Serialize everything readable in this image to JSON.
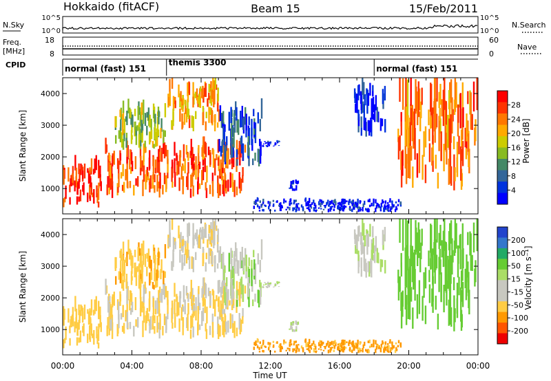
{
  "header": {
    "station": "Hokkaido (fitACF)",
    "beam": "Beam 15",
    "date": "15/Feb/2011"
  },
  "noise_panel": {
    "left_label": "N.Sky",
    "right_label": "N.Search",
    "left_ticks": [
      "10^5",
      "10^0"
    ],
    "right_ticks": [
      "10^5",
      "10^0"
    ]
  },
  "freq_panel": {
    "left_label_1": "Freq.",
    "left_label_2": "[MHz]",
    "right_label": "Nave",
    "left_ticks": [
      "18",
      "8"
    ],
    "right_ticks": [
      "60",
      "0"
    ]
  },
  "cpid": {
    "label": "CPID",
    "segments": [
      {
        "name": "normal (fast) 151",
        "start_hour": 0
      },
      {
        "name": "themis 3300",
        "start_hour": 6
      },
      {
        "name": "normal (fast) 151",
        "start_hour": 18
      }
    ]
  },
  "power_colorbar": {
    "title": "Power [dB]",
    "levels": [
      "28",
      "24",
      "20",
      "16",
      "12",
      "8",
      "4"
    ],
    "colors": [
      "#ff0000",
      "#ff3300",
      "#ff7700",
      "#ffaa00",
      "#cccc00",
      "#88bb22",
      "#448866",
      "#336699",
      "#0033dd",
      "#0000ff"
    ]
  },
  "velocity_colorbar": {
    "title": "Velocity [m s⁻¹]",
    "levels": [
      "200",
      "100",
      "50",
      "15",
      "-15",
      "-50",
      "-100",
      "-200"
    ],
    "colors": [
      "#2244cc",
      "#3377cc",
      "#22aa66",
      "#66cc33",
      "#aadd66",
      "#c8c8c0",
      "#c8c8c0",
      "#ffcc44",
      "#ff9900",
      "#ff5500",
      "#ee0000"
    ]
  },
  "chart_data": {
    "type": "heatmap",
    "xlabel": "Time UT",
    "ylabel": "Slant Range [km]",
    "x_ticks": [
      "00:00",
      "04:00",
      "08:00",
      "12:00",
      "16:00",
      "20:00",
      "00:00"
    ],
    "y_ticks": [
      "1000",
      "2000",
      "3000",
      "4000"
    ],
    "xlim_hours": [
      0,
      24
    ],
    "ylim_km": [
      200,
      4500
    ],
    "echo_regions": [
      {
        "t0": 0.0,
        "t1": 2.2,
        "r0": 400,
        "r1": 1800,
        "power_db": 30,
        "velocity": -30
      },
      {
        "t0": 2.4,
        "t1": 10.5,
        "r0": 700,
        "r1": 2400,
        "power_db": 28,
        "velocity": -20
      },
      {
        "t0": 3.0,
        "t1": 6.0,
        "r0": 2200,
        "r1": 3600,
        "power_db": 18,
        "velocity": -40
      },
      {
        "t0": 6.0,
        "t1": 9.0,
        "r0": 2800,
        "r1": 4400,
        "power_db": 24,
        "velocity": -10
      },
      {
        "t0": 9.0,
        "t1": 11.5,
        "r0": 1700,
        "r1": 3600,
        "power_db": 10,
        "velocity": 5
      },
      {
        "t0": 11.5,
        "t1": 12.5,
        "r0": 2300,
        "r1": 2500,
        "power_db": 6,
        "velocity": 0
      },
      {
        "t0": 13.0,
        "t1": 13.6,
        "r0": 900,
        "r1": 1300,
        "power_db": 6,
        "velocity": 0
      },
      {
        "t0": 11.0,
        "t1": 19.5,
        "r0": 250,
        "r1": 650,
        "power_db": 6,
        "velocity": -60
      },
      {
        "t0": 16.8,
        "t1": 18.6,
        "r0": 2600,
        "r1": 4200,
        "power_db": 6,
        "velocity": 0
      },
      {
        "t0": 19.3,
        "t1": 24.0,
        "r0": 900,
        "r1": 4300,
        "power_db": 26,
        "velocity": 30
      }
    ]
  }
}
